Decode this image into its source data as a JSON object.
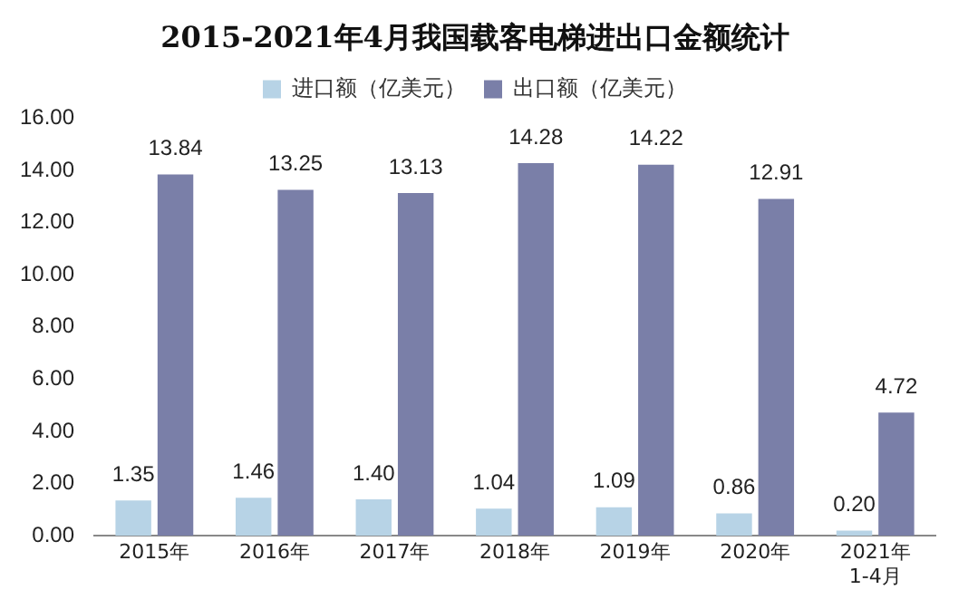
{
  "chart_data": {
    "type": "bar",
    "title": "2015-2021年4月我国载客电梯进出口金额统计",
    "categories": [
      "2015年",
      "2016年",
      "2017年",
      "2018年",
      "2019年",
      "2020年",
      "2021年\n1-4月"
    ],
    "series": [
      {
        "name": "进口额（亿美元）",
        "color": "#b7d3e6",
        "values": [
          1.35,
          1.46,
          1.4,
          1.04,
          1.09,
          0.86,
          0.2
        ],
        "value_labels": [
          "1.35",
          "1.46",
          "1.40",
          "1.04",
          "1.09",
          "0.86",
          "0.20"
        ]
      },
      {
        "name": "出口额（亿美元）",
        "color": "#7a7fa8",
        "values": [
          13.84,
          13.25,
          13.13,
          14.28,
          14.22,
          12.91,
          4.72
        ],
        "value_labels": [
          "13.84",
          "13.25",
          "13.13",
          "14.28",
          "14.22",
          "12.91",
          "4.72"
        ]
      }
    ],
    "ylim": [
      0,
      16
    ],
    "yticks": [
      {
        "value": 0,
        "label": "0.00"
      },
      {
        "value": 2,
        "label": "2.00"
      },
      {
        "value": 4,
        "label": "4.00"
      },
      {
        "value": 6,
        "label": "6.00"
      },
      {
        "value": 8,
        "label": "8.00"
      },
      {
        "value": 10,
        "label": "10.00"
      },
      {
        "value": 12,
        "label": "12.00"
      },
      {
        "value": 14,
        "label": "14.00"
      },
      {
        "value": 16,
        "label": "16.00"
      }
    ],
    "legend": "top",
    "grid": false
  }
}
